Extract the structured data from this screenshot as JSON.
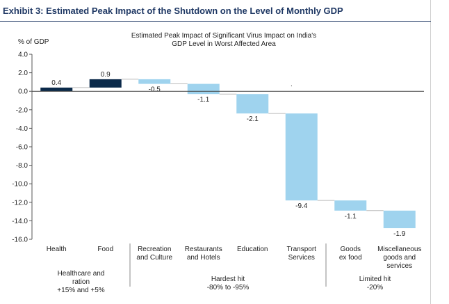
{
  "exhibit_title": "Exhibit 3: Estimated Peak Impact of the Shutdown on the Level of Monthly GDP",
  "colors": {
    "positive": "#0b2a4a",
    "negative": "#9fd3ee",
    "exhibit_title": "#1f3864"
  },
  "chart_data": {
    "type": "bar",
    "subtype": "waterfall",
    "title": "Estimated Peak Impact of Significant Virus Impact on India's GDP Level in Worst Affected Area",
    "title_lines": [
      "Estimated Peak Impact of Significant Virus Impact on India's",
      "GDP Level in Worst Affected Area"
    ],
    "ylabel": "% of GDP",
    "ylim": [
      -16,
      4
    ],
    "yticks": [
      4,
      2,
      0,
      -2,
      -4,
      -6,
      -8,
      -10,
      -12,
      -14,
      -16
    ],
    "ytick_labels": [
      "4.0",
      "2.0",
      "0.0",
      "-2.0",
      "-4.0",
      "-6.0",
      "-8.0",
      "-10.0",
      "-12.0",
      "-14.0",
      "-16.0"
    ],
    "grid": false,
    "categories": [
      [
        "Health"
      ],
      [
        "Food"
      ],
      [
        "Recreation",
        "and Culture"
      ],
      [
        "Restaurants",
        "and Hotels"
      ],
      [
        "Education"
      ],
      [
        "Transport",
        "Services"
      ],
      [
        "Goods",
        "ex food"
      ],
      [
        "Miscellaneous",
        "goods and",
        "services"
      ]
    ],
    "values": [
      0.4,
      0.9,
      -0.5,
      -1.1,
      -2.1,
      -9.4,
      -1.1,
      -1.9
    ],
    "data_labels": [
      "0.4",
      "0.9",
      "-0.5",
      "-1.1",
      "-2.1",
      "-9.4",
      "-1.1",
      "-1.9"
    ],
    "groups": [
      {
        "lines": [
          "Healthcare and",
          "ration",
          "+15% and +5%"
        ],
        "span": [
          0,
          1
        ]
      },
      {
        "lines": [
          "Hardest hit",
          "-80% to -95%"
        ],
        "span": [
          2,
          5
        ]
      },
      {
        "lines": [
          "Limited hit",
          "-20%"
        ],
        "span": [
          6,
          7
        ]
      }
    ],
    "annotation": "."
  }
}
